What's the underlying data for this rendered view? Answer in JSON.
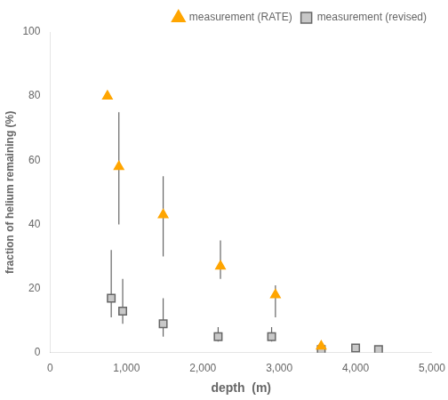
{
  "chart_data": {
    "type": "scatter",
    "xlabel": "depth  (m)",
    "ylabel": "fraction of helium remaining (%)",
    "xlim": [
      0,
      5000
    ],
    "ylim": [
      0,
      100
    ],
    "xticks": [
      0,
      1000,
      2000,
      3000,
      4000,
      5000
    ],
    "yticks": [
      0,
      20,
      40,
      60,
      80,
      100
    ],
    "grid": false,
    "legend": "upper right",
    "series": [
      {
        "name": "measurement (RATE)",
        "color": "#FFA500",
        "marker": "triangle",
        "x": [
          750,
          900,
          1480,
          2230,
          2950,
          3550
        ],
        "values": [
          80,
          58,
          43,
          27,
          18,
          2
        ],
        "yerr_lo": [
          0,
          18,
          13,
          4,
          7,
          1
        ],
        "yerr_hi": [
          0,
          17,
          12,
          8,
          3,
          1
        ]
      },
      {
        "name": "measurement (revised)",
        "color": "#C8C8C8",
        "marker": "square",
        "x": [
          800,
          950,
          1480,
          2200,
          2900,
          3550,
          4000,
          4300
        ],
        "values": [
          17,
          13,
          9,
          5,
          5,
          1,
          1.5,
          1
        ],
        "yerr_lo": [
          6,
          4,
          4,
          1.5,
          1.5,
          0.5,
          0.5,
          0.5
        ],
        "yerr_hi": [
          15,
          10,
          8,
          3,
          3,
          0.5,
          0.5,
          0.5
        ]
      }
    ]
  }
}
